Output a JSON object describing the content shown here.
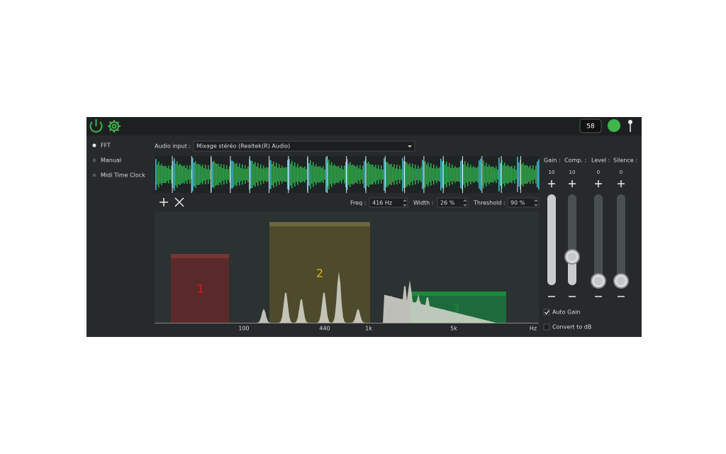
{
  "toolbar": {
    "counter": "58"
  },
  "sync_modes": [
    "FFT",
    "Manual",
    "Midi Time Clock"
  ],
  "audio_input": {
    "label": "Audio input :",
    "device": "Mixage stéréo (Realtek(R) Audio)"
  },
  "controls": {
    "freq": {
      "label": "Freq :",
      "value": "416 Hz"
    },
    "width": {
      "label": "Width :",
      "value": "26 %"
    },
    "threshold": {
      "label": "Threshold :",
      "value": "90 %"
    }
  },
  "spectrum": {
    "axis_labels": [
      "100",
      "440",
      "1k",
      "5k",
      "Hz"
    ],
    "zones": [
      "1",
      "2",
      "3"
    ]
  },
  "sliders": [
    {
      "label": "Gain :",
      "value": "10"
    },
    {
      "label": "Comp. :",
      "value": "10"
    },
    {
      "label": "Level :",
      "value": "0"
    },
    {
      "label": "Silence :",
      "value": "0"
    }
  ],
  "options": [
    "Auto Gain",
    "Convert to dB"
  ]
}
